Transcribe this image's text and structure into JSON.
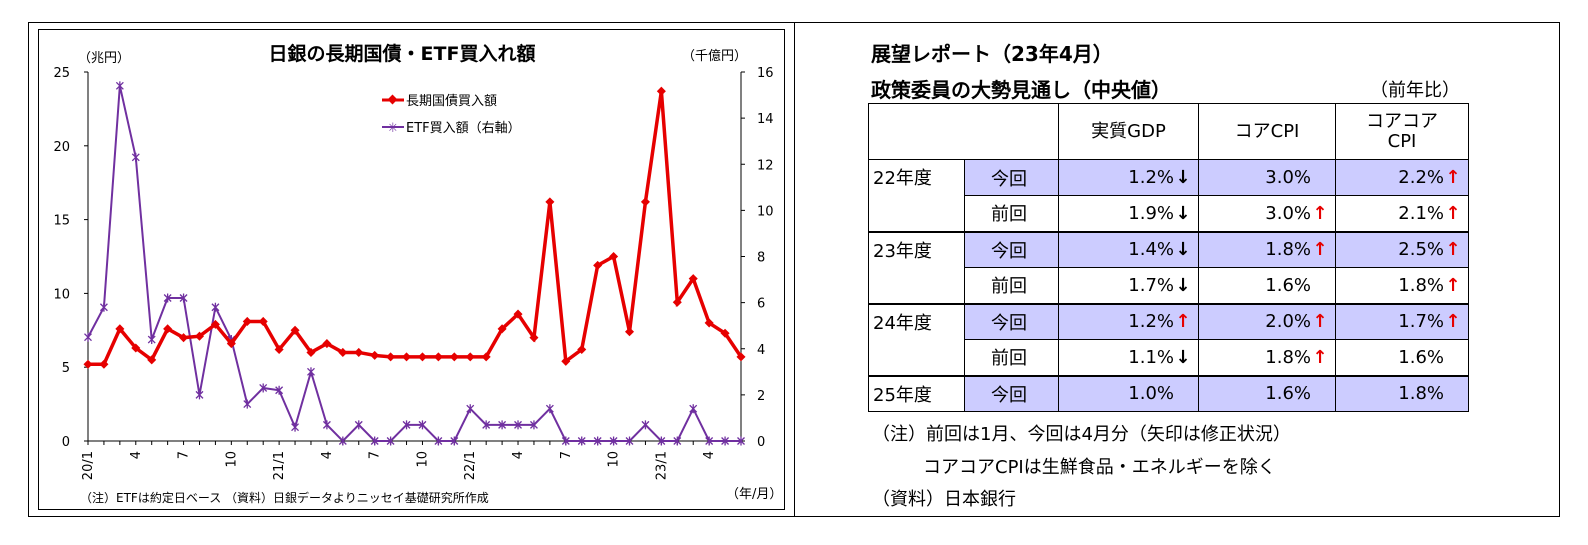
{
  "chart_data": {
    "type": "line",
    "title": "日銀の長期国債・ETF買入れ額",
    "left_unit": "（兆円）",
    "right_unit": "（千億円）",
    "xlabel": "（年/月）",
    "note": "（注）ETFは約定日ベース （資料）日銀データよりニッセイ基礎研究所作成",
    "y_left": {
      "min": 0,
      "max": 25,
      "ticks": [
        "0",
        "5",
        "10",
        "15",
        "20",
        "25"
      ]
    },
    "y_right": {
      "min": 0,
      "max": 16,
      "ticks": [
        "0",
        "2",
        "4",
        "6",
        "8",
        "10",
        "12",
        "14",
        "16"
      ]
    },
    "x_ticks": [
      {
        "i": 0,
        "label": "20/1"
      },
      {
        "i": 3,
        "label": "4"
      },
      {
        "i": 6,
        "label": "7"
      },
      {
        "i": 9,
        "label": "10"
      },
      {
        "i": 12,
        "label": "21/1"
      },
      {
        "i": 15,
        "label": "4"
      },
      {
        "i": 18,
        "label": "7"
      },
      {
        "i": 21,
        "label": "10"
      },
      {
        "i": 24,
        "label": "22/1"
      },
      {
        "i": 27,
        "label": "4"
      },
      {
        "i": 30,
        "label": "7"
      },
      {
        "i": 33,
        "label": "10"
      },
      {
        "i": 36,
        "label": "23/1"
      },
      {
        "i": 39,
        "label": "4"
      }
    ],
    "legend_position": "top-center",
    "series": [
      {
        "name": "長期国債買入額",
        "axis": "left",
        "color": "#e60000",
        "values": [
          5.2,
          5.2,
          7.6,
          6.3,
          5.5,
          7.6,
          7.0,
          7.1,
          7.9,
          6.6,
          8.1,
          8.1,
          6.2,
          7.5,
          6.0,
          6.6,
          6.0,
          6.0,
          5.8,
          5.7,
          5.7,
          5.7,
          5.7,
          5.7,
          5.7,
          5.7,
          7.6,
          8.6,
          7.0,
          16.2,
          5.4,
          6.2,
          11.9,
          12.5,
          7.4,
          16.2,
          23.7,
          9.4,
          11.0,
          8.0,
          7.3,
          5.7
        ]
      },
      {
        "name": "ETF買入額（右軸）",
        "axis": "right",
        "color": "#7030a0",
        "values": [
          4.5,
          5.8,
          15.4,
          12.3,
          4.4,
          6.2,
          6.2,
          2.0,
          5.8,
          4.4,
          1.6,
          2.3,
          2.2,
          0.6,
          3.0,
          0.7,
          0.0,
          0.7,
          0.0,
          0.0,
          0.7,
          0.7,
          0.0,
          0.0,
          1.4,
          0.7,
          0.7,
          0.7,
          0.7,
          1.4,
          0.0,
          0.0,
          0.0,
          0.0,
          0.0,
          0.7,
          0.0,
          0.0,
          1.4,
          0.0,
          0.0,
          0.0
        ]
      }
    ]
  },
  "forecast": {
    "title1": "展望レポート（23年4月）",
    "title2": "政策委員の大勢見通し（中央値）",
    "yoy_label": "（前年比）",
    "columns": [
      "実質GDP",
      "コアCPI",
      "コアコア\nCPI"
    ],
    "colors": {
      "now_bg": "#ccccff",
      "up_arrow": "#e60000",
      "down_arrow": "#000000"
    },
    "rows": [
      {
        "year": "22年度",
        "kind": "今回",
        "gdp": "1.2%",
        "gdp_arrow": "down",
        "cpi": "3.0%",
        "cpi_arrow": "",
        "core": "2.2%",
        "core_arrow": "up"
      },
      {
        "year": "",
        "kind": "前回",
        "gdp": "1.9%",
        "gdp_arrow": "down",
        "cpi": "3.0%",
        "cpi_arrow": "up",
        "core": "2.1%",
        "core_arrow": "up"
      },
      {
        "year": "23年度",
        "kind": "今回",
        "gdp": "1.4%",
        "gdp_arrow": "down",
        "cpi": "1.8%",
        "cpi_arrow": "up",
        "core": "2.5%",
        "core_arrow": "up"
      },
      {
        "year": "",
        "kind": "前回",
        "gdp": "1.7%",
        "gdp_arrow": "down",
        "cpi": "1.6%",
        "cpi_arrow": "",
        "core": "1.8%",
        "core_arrow": "up"
      },
      {
        "year": "24年度",
        "kind": "今回",
        "gdp": "1.2%",
        "gdp_arrow": "up",
        "cpi": "2.0%",
        "cpi_arrow": "up",
        "core": "1.7%",
        "core_arrow": "up"
      },
      {
        "year": "",
        "kind": "前回",
        "gdp": "1.1%",
        "gdp_arrow": "down",
        "cpi": "1.8%",
        "cpi_arrow": "up",
        "core": "1.6%",
        "core_arrow": ""
      },
      {
        "year": "25年度",
        "kind": "今回",
        "gdp": "1.0%",
        "gdp_arrow": "",
        "cpi": "1.6%",
        "cpi_arrow": "",
        "core": "1.8%",
        "core_arrow": ""
      }
    ],
    "note1": "（注）前回は1月、今回は4月分（矢印は修正状況）",
    "note2": "コアコアCPIは生鮮食品・エネルギーを除く",
    "source": "（資料）日本銀行"
  }
}
